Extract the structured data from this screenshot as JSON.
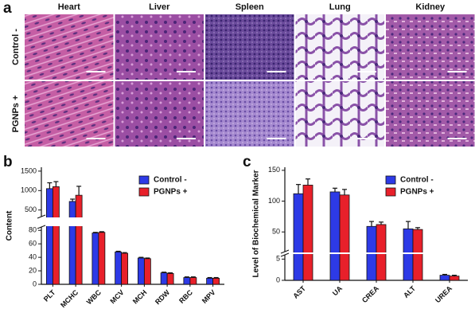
{
  "panel_a": {
    "label": "a",
    "columns": [
      "Heart",
      "Liver",
      "Spleen",
      "Lung",
      "Kidney"
    ],
    "rows": [
      "Control -",
      "PGNPs +"
    ]
  },
  "chart_data": [
    {
      "type": "bar",
      "panel_label": "b",
      "y_label": "Content",
      "categories": [
        "PLT",
        "MCHC",
        "WBC",
        "MCV",
        "MCH",
        "RDW",
        "RBC",
        "MPV"
      ],
      "series": [
        {
          "name": "Control -",
          "color": "#2d3ae6",
          "values": [
            1050,
            720,
            76,
            48,
            39,
            17,
            10,
            9
          ],
          "errors": [
            150,
            60,
            1,
            1,
            1,
            1,
            1,
            1
          ]
        },
        {
          "name": "PGNPs +",
          "color": "#e8202a",
          "values": [
            1100,
            880,
            77,
            46,
            38,
            16,
            10,
            9
          ],
          "errors": [
            130,
            230,
            1,
            1,
            1,
            1,
            1,
            1
          ]
        }
      ],
      "y_segments": [
        {
          "ylim": [
            0,
            85
          ],
          "yticks": [
            0,
            20,
            40,
            60,
            80
          ]
        },
        {
          "ylim": [
            330,
            1600
          ],
          "yticks": [
            500,
            1000,
            1500
          ]
        }
      ],
      "legend": "upper right"
    },
    {
      "type": "bar",
      "panel_label": "c",
      "y_label": "Level of Biochemical Marker",
      "categories": [
        "AST",
        "UA",
        "CREA",
        "ALT",
        "UREA"
      ],
      "series": [
        {
          "name": "Control -",
          "color": "#2d3ae6",
          "values": [
            112,
            115,
            59,
            55,
            1.2
          ],
          "errors": [
            15,
            6,
            8,
            12,
            0.2
          ]
        },
        {
          "name": "PGNPs +",
          "color": "#e8202a",
          "values": [
            126,
            110,
            62,
            54,
            1.0
          ],
          "errors": [
            10,
            9,
            4,
            3,
            0.2
          ]
        }
      ],
      "y_segments": [
        {
          "ylim": [
            0,
            6
          ],
          "yticks": [
            0,
            5
          ]
        },
        {
          "ylim": [
            18,
            155
          ],
          "yticks": [
            50,
            100,
            150
          ]
        }
      ],
      "legend": "upper right"
    }
  ]
}
